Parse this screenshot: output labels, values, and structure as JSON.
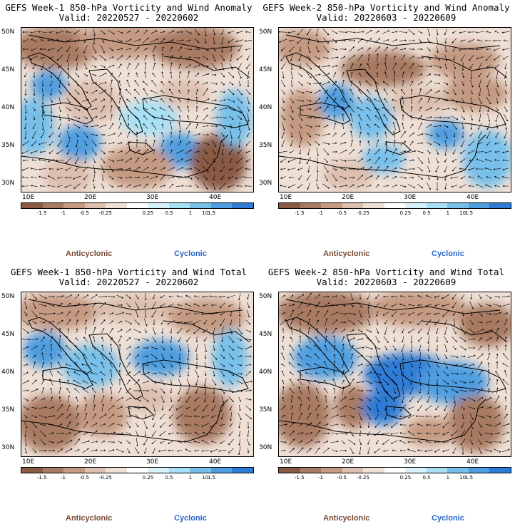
{
  "colors": {
    "scale": [
      "#8a5a44",
      "#a87a62",
      "#c49a82",
      "#dcbfae",
      "#efe0d6",
      "#ffffff",
      "#d8f2fb",
      "#a8e0f5",
      "#78c0ea",
      "#4f9ee0",
      "#2e7cd6"
    ],
    "anticyclonic": "#7a4a35",
    "cyclonic": "#2a66c9"
  },
  "colorbar_labels": [
    "-1.5",
    "-1",
    "-0.5",
    "-0.25",
    "0.25",
    "0.5",
    "1",
    "1.5"
  ],
  "colorbar_scale_mark": "10",
  "lat_labels": [
    "50N",
    "45N",
    "40N",
    "35N",
    "30N"
  ],
  "lon_labels": [
    "10E",
    "20E",
    "30E",
    "40E"
  ],
  "legend": {
    "anticyclonic": "Anticyclonic",
    "cyclonic": "Cyclonic"
  },
  "panels": [
    {
      "title": "GEFS Week-1 850-hPa Vorticity and Wind Anomaly",
      "valid": "Valid: 20220527 - 20220602",
      "variant": 1
    },
    {
      "title": "GEFS Week-2 850-hPa Vorticity and Wind Anomaly",
      "valid": "Valid: 20220603 - 20220609",
      "variant": 2
    },
    {
      "title": "GEFS Week-1 850-hPa Vorticity and Wind Total",
      "valid": "Valid: 20220527 - 20220602",
      "variant": 3
    },
    {
      "title": "GEFS Week-2 850-hPa Vorticity and Wind Total",
      "valid": "Valid: 20220603 - 20220609",
      "variant": 4
    }
  ]
}
